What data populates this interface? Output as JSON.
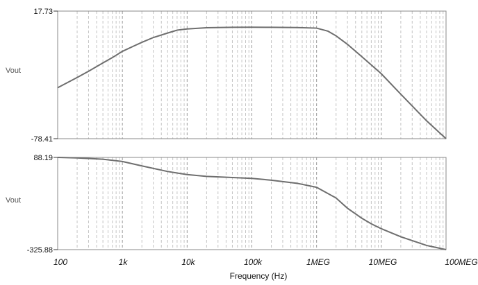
{
  "chart_data": [
    {
      "type": "line",
      "xscale": "log",
      "xlim": [
        100,
        100000000
      ],
      "ylim": [
        -78.41,
        17.73
      ],
      "ylabel": "Vout",
      "ytick_labels": [
        "17.73",
        "-78.41"
      ],
      "grid": "vertical dashed",
      "series": [
        {
          "x": [
            100,
            150,
            200,
            300,
            500,
            700,
            1000,
            1500,
            2000,
            3000,
            5000,
            7000,
            10000,
            20000,
            50000,
            100000,
            200000,
            500000,
            1000000,
            1500000,
            2000000,
            3000000,
            5000000,
            7000000,
            10000000,
            20000000,
            50000000,
            100000000
          ],
          "y": [
            -40.0,
            -35.5,
            -32.3,
            -27.6,
            -21.3,
            -17.3,
            -12.6,
            -8.6,
            -5.8,
            -2.2,
            1.2,
            3.4,
            4.3,
            5.2,
            5.5,
            5.6,
            5.5,
            5.3,
            4.9,
            2.6,
            -0.9,
            -7.3,
            -16.6,
            -22.8,
            -29.5,
            -44.9,
            -64.9,
            -78.41
          ]
        }
      ]
    },
    {
      "type": "line",
      "xscale": "log",
      "xlim": [
        100,
        100000000
      ],
      "ylim": [
        -325.88,
        88.19
      ],
      "ylabel": "Vout",
      "ytick_labels": [
        "88.19",
        "-325.88"
      ],
      "grid": "vertical dashed",
      "xlabel": "Frequency (Hz)",
      "xtick_labels": [
        "100",
        "1k",
        "10k",
        "100k",
        "1MEG",
        "10MEG",
        "100MEG"
      ],
      "series": [
        {
          "x": [
            100,
            200,
            500,
            1000,
            2000,
            5000,
            10000,
            20000,
            50000,
            100000,
            200000,
            500000,
            1000000,
            2000000,
            3000000,
            5000000,
            7000000,
            10000000,
            20000000,
            50000000,
            100000000
          ],
          "y": [
            88.19,
            86.0,
            80.0,
            70.0,
            50.0,
            25.0,
            11.0,
            3.0,
            -2.0,
            -6.0,
            -14.0,
            -28.0,
            -46.0,
            -94.0,
            -140.0,
            -185.0,
            -210.0,
            -232.0,
            -268.0,
            -307.0,
            -325.88
          ]
        }
      ]
    }
  ]
}
